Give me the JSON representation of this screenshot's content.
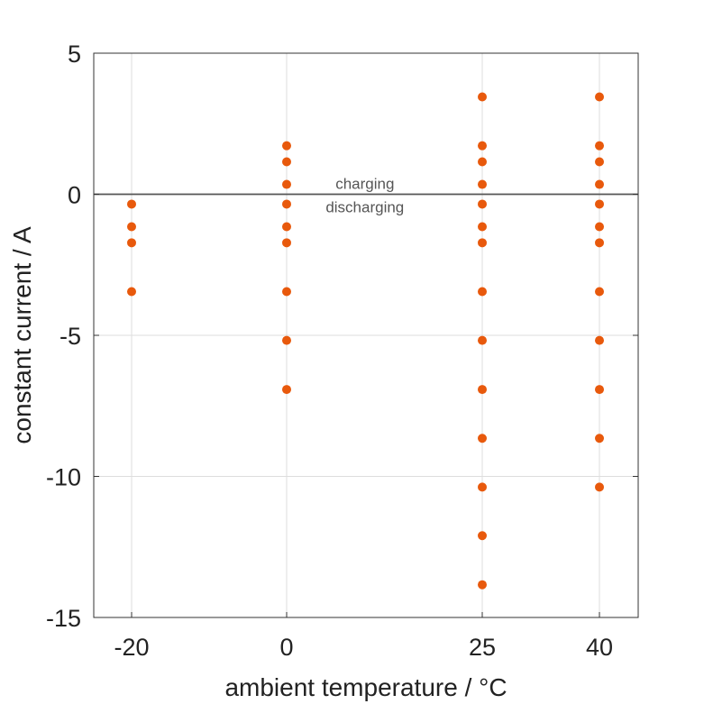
{
  "chart_data": {
    "type": "scatter",
    "xlabel": "ambient temperature / °C",
    "ylabel": "constant current / A",
    "xticks": [
      -20,
      0,
      25,
      40
    ],
    "yticks": [
      -15,
      -10,
      -5,
      0,
      5
    ],
    "ylim": [
      -15,
      5
    ],
    "grid": true,
    "legend": "none",
    "reference_line": {
      "y": 0
    },
    "annotations": {
      "above": "charging",
      "below": "discharging"
    },
    "marker_color": "#e8590c",
    "series": [
      {
        "points": [
          {
            "x": -20,
            "y": -0.35
          },
          {
            "x": -20,
            "y": -1.15
          },
          {
            "x": -20,
            "y": -1.72
          },
          {
            "x": -20,
            "y": -3.45
          },
          {
            "x": 0,
            "y": 1.72
          },
          {
            "x": 0,
            "y": 1.15
          },
          {
            "x": 0,
            "y": 0.35
          },
          {
            "x": 0,
            "y": -0.35
          },
          {
            "x": 0,
            "y": -1.15
          },
          {
            "x": 0,
            "y": -1.72
          },
          {
            "x": 0,
            "y": -3.45
          },
          {
            "x": 0,
            "y": -5.18
          },
          {
            "x": 0,
            "y": -6.92
          },
          {
            "x": 25,
            "y": 3.45
          },
          {
            "x": 25,
            "y": 1.72
          },
          {
            "x": 25,
            "y": 1.15
          },
          {
            "x": 25,
            "y": 0.35
          },
          {
            "x": 25,
            "y": -0.35
          },
          {
            "x": 25,
            "y": -1.15
          },
          {
            "x": 25,
            "y": -1.72
          },
          {
            "x": 25,
            "y": -3.45
          },
          {
            "x": 25,
            "y": -5.18
          },
          {
            "x": 25,
            "y": -6.92
          },
          {
            "x": 25,
            "y": -8.65
          },
          {
            "x": 25,
            "y": -10.38
          },
          {
            "x": 25,
            "y": -12.1
          },
          {
            "x": 25,
            "y": -13.84
          },
          {
            "x": 40,
            "y": 3.45
          },
          {
            "x": 40,
            "y": 1.72
          },
          {
            "x": 40,
            "y": 1.15
          },
          {
            "x": 40,
            "y": 0.35
          },
          {
            "x": 40,
            "y": -0.35
          },
          {
            "x": 40,
            "y": -1.15
          },
          {
            "x": 40,
            "y": -1.72
          },
          {
            "x": 40,
            "y": -3.45
          },
          {
            "x": 40,
            "y": -5.18
          },
          {
            "x": 40,
            "y": -6.92
          },
          {
            "x": 40,
            "y": -8.65
          },
          {
            "x": 40,
            "y": -10.38
          }
        ]
      }
    ]
  }
}
